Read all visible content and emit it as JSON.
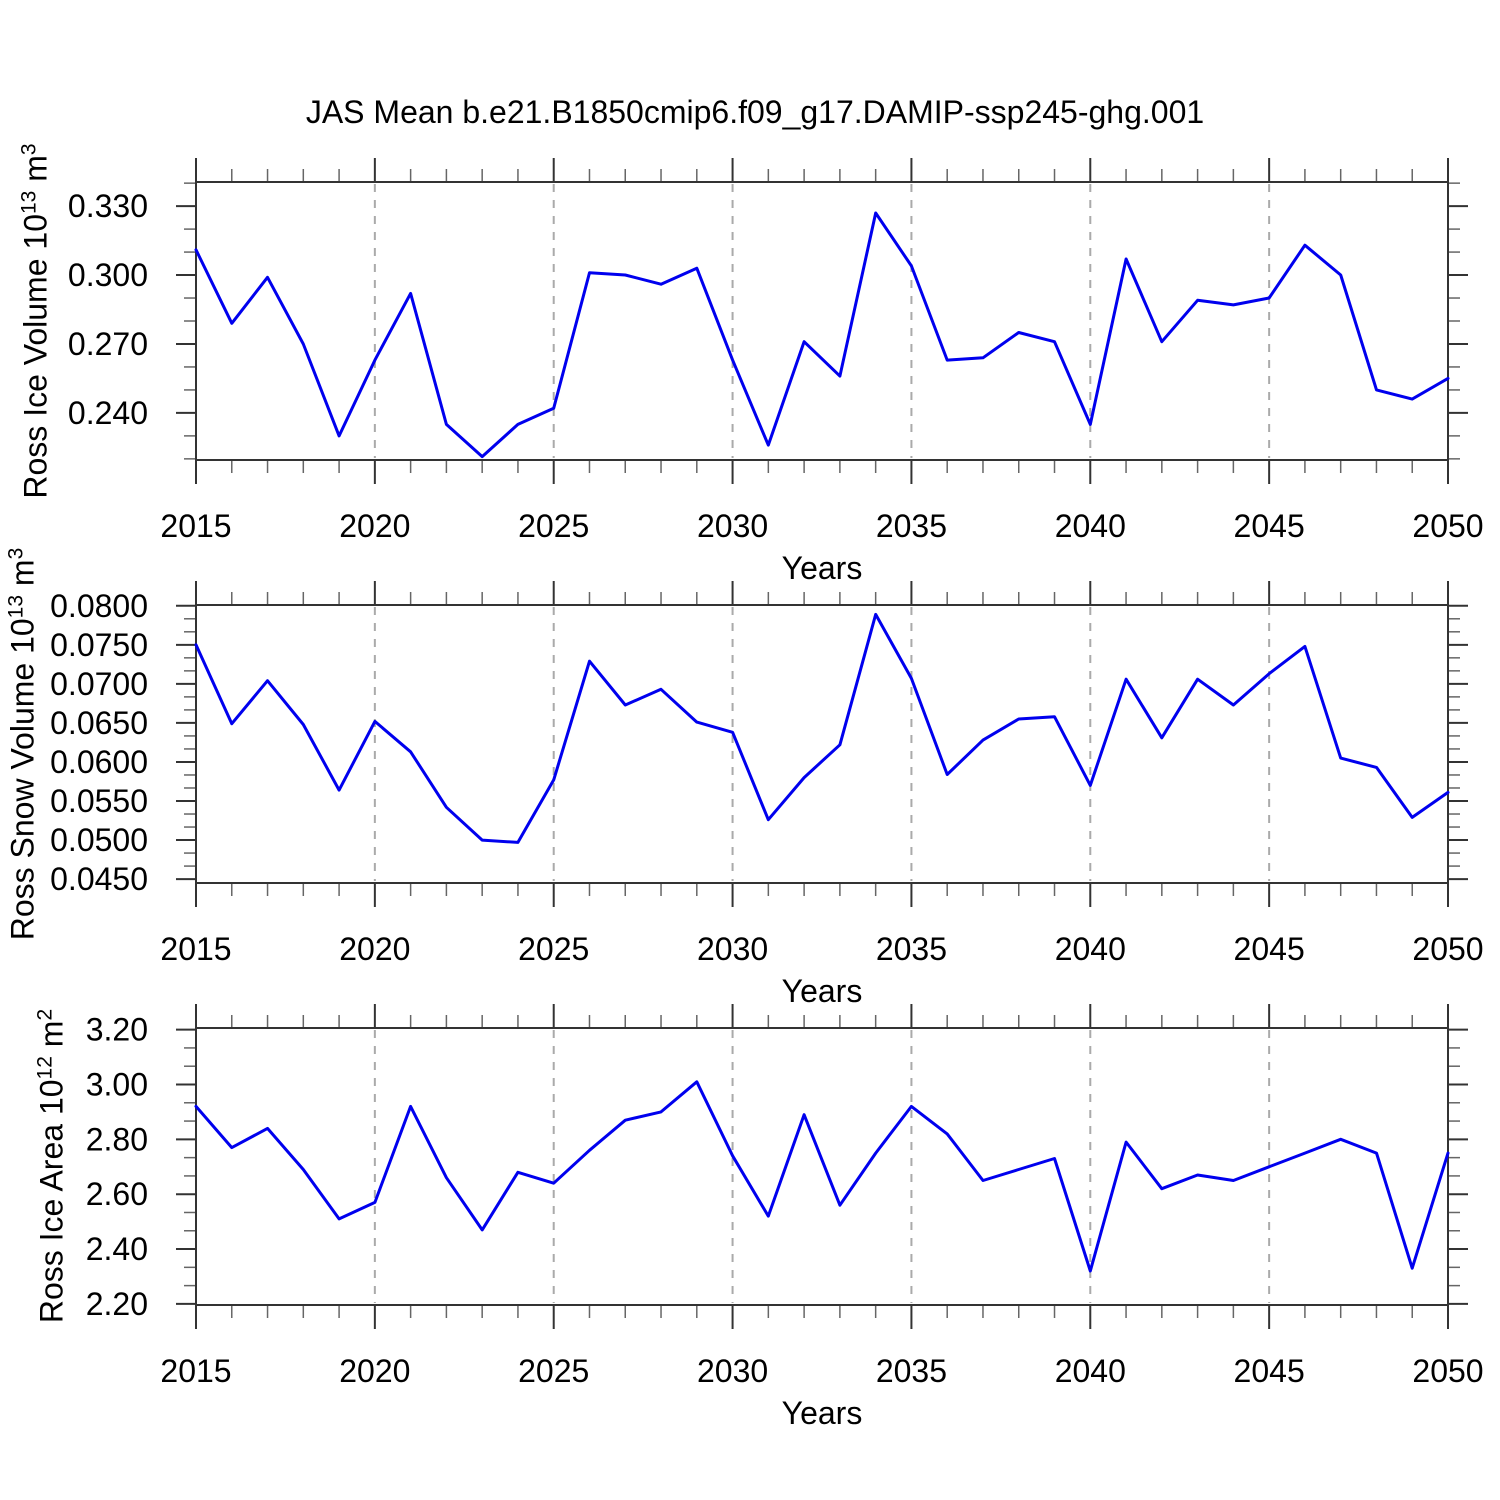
{
  "title": "JAS Mean b.e21.B1850cmip6.f09_g17.DAMIP-ssp245-ghg.001",
  "colors": {
    "line": "#0000ee",
    "grid": "#aaaaaa",
    "frame": "#333333",
    "major_tick": "#333333",
    "minor_tick": "#666666",
    "text": "#000000"
  },
  "chart_data": [
    {
      "type": "line",
      "ylabel_parts": [
        {
          "t": "Ross Ice Volume 10"
        },
        {
          "sup": "13"
        },
        {
          "t": " m"
        },
        {
          "sup": "3"
        }
      ],
      "xlabel": "Years",
      "x": [
        2015,
        2016,
        2017,
        2018,
        2019,
        2020,
        2021,
        2022,
        2023,
        2024,
        2025,
        2026,
        2027,
        2028,
        2029,
        2030,
        2031,
        2032,
        2033,
        2034,
        2035,
        2036,
        2037,
        2038,
        2039,
        2040,
        2041,
        2042,
        2043,
        2044,
        2045,
        2046,
        2047,
        2048,
        2049,
        2050
      ],
      "values": [
        0.311,
        0.279,
        0.299,
        0.27,
        0.23,
        0.263,
        0.292,
        0.235,
        0.221,
        0.235,
        0.242,
        0.301,
        0.3,
        0.296,
        0.303,
        0.263,
        0.226,
        0.271,
        0.256,
        0.327,
        0.304,
        0.263,
        0.264,
        0.275,
        0.271,
        0.235,
        0.307,
        0.271,
        0.289,
        0.287,
        0.29,
        0.313,
        0.3,
        0.25,
        0.246,
        0.255
      ],
      "xlim": [
        2015,
        2050
      ],
      "ylim": [
        0.2195,
        0.3405
      ],
      "yticks": [
        0.24,
        0.27,
        0.3,
        0.33
      ],
      "ytick_labels": [
        "0.240",
        "0.270",
        "0.300",
        "0.330"
      ],
      "y_minor_step": 0.01,
      "xticks": [
        2015,
        2020,
        2025,
        2030,
        2035,
        2040,
        2045,
        2050
      ],
      "xtick_labels": [
        "2015",
        "2020",
        "2025",
        "2030",
        "2035",
        "2040",
        "2045",
        "2050"
      ],
      "x_minor_step": 1,
      "grid_x": [
        2020,
        2025,
        2030,
        2035,
        2040,
        2045
      ],
      "grid": "vertical-dashed",
      "legend": "none"
    },
    {
      "type": "line",
      "ylabel_parts": [
        {
          "t": "Ross Snow Volume 10"
        },
        {
          "sup": "13"
        },
        {
          "t": " m"
        },
        {
          "sup": "3"
        }
      ],
      "xlabel": "Years",
      "x": [
        2015,
        2016,
        2017,
        2018,
        2019,
        2020,
        2021,
        2022,
        2023,
        2024,
        2025,
        2026,
        2027,
        2028,
        2029,
        2030,
        2031,
        2032,
        2033,
        2034,
        2035,
        2036,
        2037,
        2038,
        2039,
        2040,
        2041,
        2042,
        2043,
        2044,
        2045,
        2046,
        2047,
        2048,
        2049,
        2050
      ],
      "values": [
        0.075,
        0.0649,
        0.0704,
        0.0648,
        0.0564,
        0.0652,
        0.0613,
        0.0542,
        0.05,
        0.0497,
        0.0577,
        0.0729,
        0.0673,
        0.0693,
        0.0651,
        0.0638,
        0.0526,
        0.058,
        0.0622,
        0.0789,
        0.0707,
        0.0584,
        0.0628,
        0.0655,
        0.0658,
        0.057,
        0.0706,
        0.0631,
        0.0706,
        0.0673,
        0.0713,
        0.0748,
        0.0605,
        0.0593,
        0.0529,
        0.0561
      ],
      "xlim": [
        2015,
        2050
      ],
      "ylim": [
        0.0445,
        0.0801
      ],
      "yticks": [
        0.045,
        0.05,
        0.055,
        0.06,
        0.065,
        0.07,
        0.075,
        0.08
      ],
      "ytick_labels": [
        "0.0450",
        "0.0500",
        "0.0550",
        "0.0600",
        "0.0650",
        "0.0700",
        "0.0750",
        "0.0800"
      ],
      "y_minor_step": 0.0016667,
      "xticks": [
        2015,
        2020,
        2025,
        2030,
        2035,
        2040,
        2045,
        2050
      ],
      "xtick_labels": [
        "2015",
        "2020",
        "2025",
        "2030",
        "2035",
        "2040",
        "2045",
        "2050"
      ],
      "x_minor_step": 1,
      "grid_x": [
        2020,
        2025,
        2030,
        2035,
        2040,
        2045
      ],
      "grid": "vertical-dashed",
      "legend": "none"
    },
    {
      "type": "line",
      "ylabel_parts": [
        {
          "t": "Ross Ice Area 10"
        },
        {
          "sup": "12"
        },
        {
          "t": " m"
        },
        {
          "sup": "2"
        }
      ],
      "xlabel": "Years",
      "x": [
        2015,
        2016,
        2017,
        2018,
        2019,
        2020,
        2021,
        2022,
        2023,
        2024,
        2025,
        2026,
        2027,
        2028,
        2029,
        2030,
        2031,
        2032,
        2033,
        2034,
        2035,
        2036,
        2037,
        2038,
        2039,
        2040,
        2041,
        2042,
        2043,
        2044,
        2045,
        2046,
        2047,
        2048,
        2049,
        2050
      ],
      "values": [
        2.92,
        2.77,
        2.84,
        2.69,
        2.51,
        2.57,
        2.92,
        2.66,
        2.47,
        2.68,
        2.64,
        2.76,
        2.87,
        2.9,
        3.01,
        2.74,
        2.52,
        2.89,
        2.56,
        2.75,
        2.92,
        2.82,
        2.65,
        2.69,
        2.73,
        2.32,
        2.79,
        2.62,
        2.67,
        2.65,
        2.7,
        2.75,
        2.8,
        2.75,
        2.33,
        2.75
      ],
      "xlim": [
        2015,
        2050
      ],
      "ylim": [
        2.196,
        3.206
      ],
      "yticks": [
        2.2,
        2.4,
        2.6,
        2.8,
        3.0,
        3.2
      ],
      "ytick_labels": [
        "2.20",
        "2.40",
        "2.60",
        "2.80",
        "3.00",
        "3.20"
      ],
      "y_minor_step": 0.066667,
      "xticks": [
        2015,
        2020,
        2025,
        2030,
        2035,
        2040,
        2045,
        2050
      ],
      "xtick_labels": [
        "2015",
        "2020",
        "2025",
        "2030",
        "2035",
        "2040",
        "2045",
        "2050"
      ],
      "x_minor_step": 1,
      "grid_x": [
        2020,
        2025,
        2030,
        2035,
        2040,
        2045
      ],
      "grid": "vertical-dashed",
      "legend": "none"
    }
  ]
}
